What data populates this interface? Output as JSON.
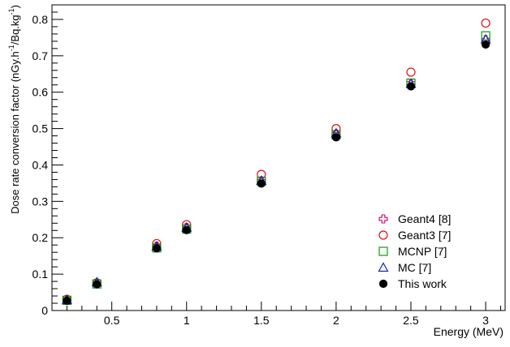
{
  "chart_data": {
    "type": "scatter",
    "title": "",
    "xlabel": "Energy (MeV)",
    "ylabel": "Dose rate conversion factor (nGy.h⁻¹/Bq.kg⁻¹)",
    "ylabel_parts": {
      "main": "Dose rate conversion factor (nGy.h",
      "sup1": "-1",
      "mid": "/Bq.kg",
      "sup2": "-1",
      "end": ")"
    },
    "xlim": [
      0.1,
      3.13
    ],
    "ylim": [
      0,
      0.84
    ],
    "x_ticks": [
      0.5,
      1,
      1.5,
      2,
      2.5,
      3
    ],
    "x_tick_labels": [
      "0.5",
      "1",
      "1.5",
      "2",
      "2.5",
      "3"
    ],
    "y_ticks": [
      0,
      0.1,
      0.2,
      0.3,
      0.4,
      0.5,
      0.6,
      0.7,
      0.8
    ],
    "y_tick_labels": [
      "0",
      "0.1",
      "0.2",
      "0.3",
      "0.4",
      "0.5",
      "0.6",
      "0.7",
      "0.8"
    ],
    "grid": false,
    "legend_position": "bottom-right",
    "series": [
      {
        "name": "Geant4 [8]",
        "marker": "open-cross",
        "color": "#cc0066",
        "x": [
          0.2,
          0.4,
          0.8,
          1.0,
          1.5,
          2.0,
          2.5,
          3.0
        ],
        "y": [
          0.029,
          0.074,
          0.177,
          0.228,
          0.356,
          0.485,
          0.625,
          0.744
        ]
      },
      {
        "name": "Geant3 [7]",
        "marker": "open-circle",
        "color": "#dd1111",
        "x": [
          0.2,
          0.4,
          0.8,
          1.0,
          1.5,
          2.0,
          2.5,
          3.0
        ],
        "y": [
          0.031,
          0.076,
          0.184,
          0.236,
          0.374,
          0.5,
          0.655,
          0.79
        ]
      },
      {
        "name": "MCNP [7]",
        "marker": "open-square",
        "color": "#119911",
        "x": [
          0.2,
          0.4,
          0.8,
          1.0,
          1.5,
          2.0,
          2.5,
          3.0
        ],
        "y": [
          0.028,
          0.073,
          0.172,
          0.224,
          0.355,
          0.483,
          0.625,
          0.755
        ]
      },
      {
        "name": "MC [7]",
        "marker": "open-triangle",
        "color": "#1122bb",
        "x": [
          0.2,
          0.4,
          0.8,
          1.0,
          1.5,
          2.0,
          2.5,
          3.0
        ],
        "y": [
          0.029,
          0.078,
          0.176,
          0.228,
          0.357,
          0.487,
          0.623,
          0.745
        ]
      },
      {
        "name": "This work",
        "marker": "filled-circle",
        "color": "#000000",
        "x": [
          0.2,
          0.4,
          0.8,
          1.0,
          1.5,
          2.0,
          2.5,
          3.0
        ],
        "y": [
          0.027,
          0.072,
          0.171,
          0.221,
          0.349,
          0.476,
          0.616,
          0.731
        ]
      }
    ]
  }
}
